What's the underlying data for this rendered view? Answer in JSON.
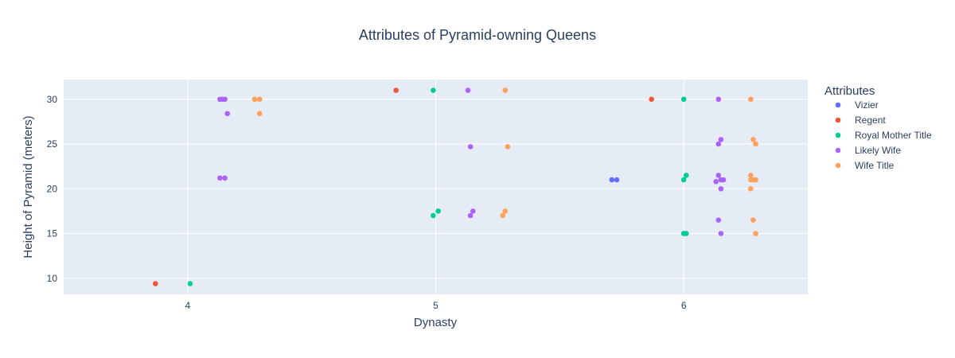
{
  "chart_data": {
    "type": "scatter",
    "title": "Attributes of Pyramid-owning Queens",
    "xlabel": "Dynasty",
    "ylabel": "Height of Pyramid (meters)",
    "x_ticks": [
      "4",
      "5",
      "6"
    ],
    "y_ticks": [
      "10",
      "15",
      "20",
      "25",
      "30"
    ],
    "xlim": [
      3.5,
      6.5
    ],
    "ylim": [
      8.2,
      32.2
    ],
    "grid": true,
    "legend_title": "Attributes",
    "legend_position": "top-right",
    "series": [
      {
        "name": "Vizier",
        "color": "#636efa",
        "points": [
          [
            5.71,
            21
          ],
          [
            5.73,
            21
          ]
        ]
      },
      {
        "name": "Regent",
        "color": "#EF553B",
        "points": [
          [
            3.87,
            9.4
          ],
          [
            4.84,
            31
          ],
          [
            5.87,
            30
          ]
        ]
      },
      {
        "name": "Royal Mother Title",
        "color": "#00cc96",
        "points": [
          [
            4.01,
            9.4
          ],
          [
            4.99,
            31
          ],
          [
            4.99,
            17
          ],
          [
            5.01,
            17.5
          ],
          [
            6.0,
            30
          ],
          [
            6.0,
            21
          ],
          [
            6.01,
            21.5
          ],
          [
            6.0,
            15
          ],
          [
            6.01,
            15
          ]
        ]
      },
      {
        "name": "Likely Wife",
        "color": "#ab63fa",
        "points": [
          [
            4.13,
            30
          ],
          [
            4.14,
            30
          ],
          [
            4.15,
            30
          ],
          [
            4.16,
            28.4
          ],
          [
            4.13,
            21.2
          ],
          [
            4.15,
            21.2
          ],
          [
            5.13,
            31
          ],
          [
            5.14,
            24.7
          ],
          [
            5.14,
            17
          ],
          [
            5.15,
            17.5
          ],
          [
            6.14,
            30
          ],
          [
            6.15,
            25.5
          ],
          [
            6.14,
            25
          ],
          [
            6.14,
            21.5
          ],
          [
            6.13,
            20.8
          ],
          [
            6.15,
            21
          ],
          [
            6.16,
            21
          ],
          [
            6.15,
            20
          ],
          [
            6.14,
            16.5
          ],
          [
            6.15,
            15
          ]
        ]
      },
      {
        "name": "Wife Title",
        "color": "#FFA15A",
        "points": [
          [
            4.27,
            30
          ],
          [
            4.29,
            30
          ],
          [
            4.29,
            28.4
          ],
          [
            5.28,
            31
          ],
          [
            5.29,
            24.7
          ],
          [
            5.27,
            17
          ],
          [
            5.28,
            17.5
          ],
          [
            6.27,
            30
          ],
          [
            6.28,
            25.5
          ],
          [
            6.29,
            25
          ],
          [
            6.27,
            21.5
          ],
          [
            6.27,
            21
          ],
          [
            6.28,
            21
          ],
          [
            6.29,
            21
          ],
          [
            6.27,
            20
          ],
          [
            6.28,
            16.5
          ],
          [
            6.29,
            15
          ]
        ]
      }
    ]
  }
}
